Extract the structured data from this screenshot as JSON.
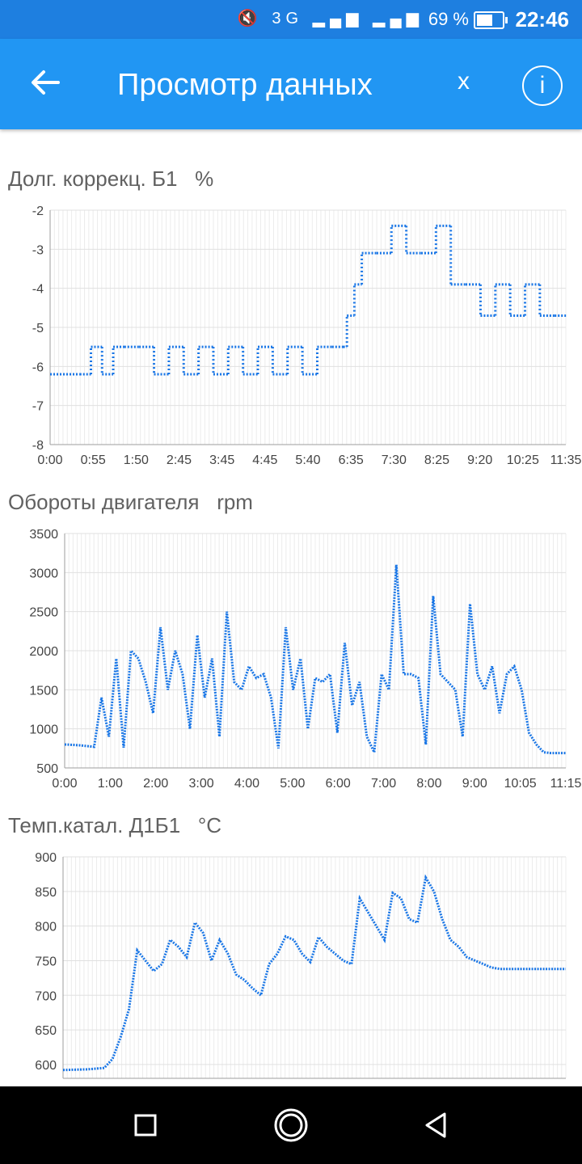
{
  "status_bar": {
    "time": "22:46",
    "battery_pct": "69 %",
    "battery_level": 0.69,
    "network": "3G",
    "icons": [
      "mute-icon",
      "signal-icon",
      "battery-icon"
    ]
  },
  "app_bar": {
    "title": "Просмотр данных",
    "close_label": "x",
    "info_label": "i",
    "back_icon": "arrow-left-icon"
  },
  "colors": {
    "appbar": "#2196f3",
    "statusbar": "#1e7fe0",
    "series": "#1976e6",
    "grid": "#e0e0e0"
  },
  "charts": [
    {
      "title": "Долг. коррекц. Б1",
      "unit": "%"
    },
    {
      "title": "Обороты двигателя",
      "unit": "rpm"
    },
    {
      "title": "Темп.катал. Д1Б1",
      "unit": "°C"
    }
  ],
  "chart_data": [
    {
      "type": "scatter",
      "xlabel": "",
      "ylabel": "",
      "x_tick_labels": [
        "0:00",
        "0:55",
        "1:50",
        "2:45",
        "3:45",
        "4:45",
        "5:40",
        "6:35",
        "7:30",
        "8:25",
        "9:20",
        "10:25",
        "11:35"
      ],
      "xlim": [
        0,
        695
      ],
      "ylim": [
        -8,
        -2
      ],
      "y_ticks": [
        -2,
        -3,
        -4,
        -5,
        -6,
        -7,
        -8
      ],
      "grid": true,
      "series": [
        {
          "x": [
            0,
            40,
            55,
            70,
            85,
            100,
            120,
            140,
            160,
            180,
            200,
            220,
            240,
            260,
            280,
            300,
            320,
            340,
            360,
            380,
            395,
            400,
            410,
            420,
            440,
            460,
            480,
            500,
            520,
            540,
            560,
            580,
            600,
            620,
            640,
            660,
            680,
            695
          ],
          "y": [
            -6.2,
            -6.2,
            -5.5,
            -6.2,
            -5.5,
            -5.5,
            -5.5,
            -6.2,
            -5.5,
            -6.2,
            -5.5,
            -6.2,
            -5.5,
            -6.2,
            -5.5,
            -6.2,
            -5.5,
            -6.2,
            -5.5,
            -5.5,
            -5.5,
            -4.7,
            -3.9,
            -3.1,
            -3.1,
            -2.4,
            -3.1,
            -3.1,
            -2.4,
            -3.9,
            -3.9,
            -4.7,
            -3.9,
            -4.7,
            -3.9,
            -4.7,
            -4.7,
            -4.7
          ]
        }
      ]
    },
    {
      "type": "line",
      "xlabel": "",
      "ylabel": "",
      "x_tick_labels": [
        "0:00",
        "1:00",
        "2:00",
        "3:00",
        "4:00",
        "5:00",
        "6:00",
        "7:00",
        "8:00",
        "9:00",
        "10:05",
        "11:15"
      ],
      "xlim": [
        0,
        680
      ],
      "ylim": [
        500,
        3500
      ],
      "y_ticks": [
        3500,
        3000,
        2500,
        2000,
        1500,
        1000,
        500
      ],
      "grid": true,
      "series": [
        {
          "x": [
            0,
            20,
            40,
            50,
            60,
            70,
            80,
            90,
            100,
            110,
            120,
            130,
            140,
            150,
            160,
            170,
            180,
            190,
            200,
            210,
            220,
            230,
            240,
            250,
            260,
            270,
            280,
            290,
            300,
            310,
            320,
            330,
            340,
            350,
            360,
            370,
            380,
            390,
            400,
            410,
            420,
            430,
            440,
            450,
            460,
            470,
            480,
            490,
            500,
            510,
            520,
            530,
            540,
            550,
            560,
            570,
            580,
            590,
            600,
            610,
            620,
            630,
            640,
            650,
            660,
            670,
            680
          ],
          "y": [
            800,
            790,
            770,
            1400,
            900,
            1900,
            760,
            2000,
            1900,
            1600,
            1200,
            2300,
            1500,
            2000,
            1700,
            1000,
            2200,
            1400,
            1900,
            900,
            2500,
            1600,
            1500,
            1800,
            1650,
            1700,
            1400,
            750,
            2300,
            1500,
            1900,
            1000,
            1650,
            1600,
            1700,
            950,
            2100,
            1300,
            1600,
            900,
            700,
            1700,
            1500,
            3100,
            1700,
            1700,
            1650,
            800,
            2700,
            1700,
            1600,
            1500,
            900,
            2600,
            1700,
            1500,
            1800,
            1200,
            1700,
            1800,
            1500,
            950,
            800,
            700,
            690,
            690,
            690
          ]
        }
      ]
    },
    {
      "type": "line",
      "xlabel": "",
      "ylabel": "",
      "x_tick_labels": [],
      "xlim": [
        0,
        610
      ],
      "ylim": [
        580,
        900
      ],
      "y_ticks": [
        900,
        850,
        800,
        750,
        700,
        650,
        600
      ],
      "grid": true,
      "series": [
        {
          "x": [
            0,
            30,
            50,
            60,
            70,
            80,
            90,
            100,
            110,
            120,
            130,
            140,
            150,
            160,
            170,
            180,
            190,
            200,
            210,
            220,
            230,
            240,
            250,
            260,
            270,
            280,
            290,
            300,
            310,
            320,
            330,
            340,
            350,
            360,
            370,
            380,
            390,
            400,
            410,
            420,
            430,
            440,
            450,
            460,
            470,
            480,
            490,
            500,
            510,
            520,
            530,
            540,
            550,
            560,
            570,
            580,
            590,
            600,
            610
          ],
          "y": [
            592,
            593,
            595,
            608,
            640,
            680,
            765,
            750,
            735,
            745,
            780,
            770,
            755,
            805,
            790,
            750,
            780,
            760,
            730,
            722,
            710,
            700,
            745,
            760,
            785,
            780,
            760,
            748,
            784,
            770,
            760,
            750,
            745,
            840,
            820,
            800,
            780,
            848,
            840,
            810,
            805,
            870,
            850,
            810,
            780,
            770,
            755,
            750,
            745,
            740,
            738,
            738,
            738,
            738,
            738,
            738,
            738,
            738,
            738
          ]
        }
      ]
    }
  ]
}
